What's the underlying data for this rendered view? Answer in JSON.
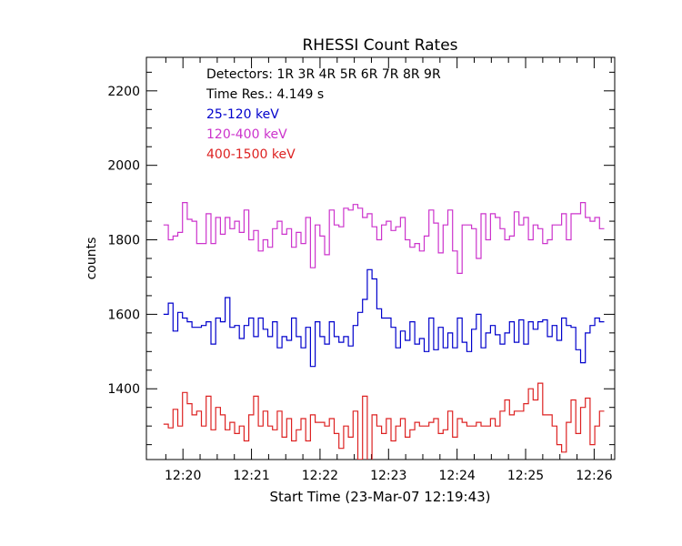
{
  "chart_data": {
    "type": "line",
    "title": "RHESSI Count Rates",
    "xlabel": "Start Time (23-Mar-07 12:19:43)",
    "ylabel": "counts",
    "xlim": [
      -15,
      395
    ],
    "ylim": [
      1210,
      2290
    ],
    "x_ticks": [
      {
        "value": 17,
        "label": "12:20"
      },
      {
        "value": 77,
        "label": "12:21"
      },
      {
        "value": 137,
        "label": "12:22"
      },
      {
        "value": 197,
        "label": "12:23"
      },
      {
        "value": 257,
        "label": "12:24"
      },
      {
        "value": 317,
        "label": "12:25"
      },
      {
        "value": 377,
        "label": "12:26"
      }
    ],
    "y_ticks": [
      {
        "value": 1400,
        "label": "1400"
      },
      {
        "value": 1600,
        "label": "1600"
      },
      {
        "value": 1800,
        "label": "1800"
      },
      {
        "value": 2000,
        "label": "2000"
      },
      {
        "value": 2200,
        "label": "2200"
      }
    ],
    "annotations": [
      {
        "text": "Detectors:  1R 3R 4R 5R 6R 7R 8R 9R",
        "color": "#000000"
      },
      {
        "text": "Time Res.: 4.149 s",
        "color": "#000000"
      },
      {
        "text": "25-120 keV",
        "color": "#0000cc"
      },
      {
        "text": "120-400 keV",
        "color": "#cc33cc"
      },
      {
        "text": "400-1500 keV",
        "color": "#dd2222"
      }
    ],
    "x_start": 0,
    "x_step": 4.149,
    "series": [
      {
        "name": "25-120 keV",
        "color": "#0000cc",
        "values": [
          1600,
          1630,
          1555,
          1605,
          1590,
          1580,
          1565,
          1565,
          1570,
          1580,
          1520,
          1590,
          1580,
          1645,
          1565,
          1570,
          1535,
          1570,
          1590,
          1540,
          1590,
          1560,
          1540,
          1580,
          1510,
          1540,
          1530,
          1590,
          1540,
          1510,
          1565,
          1460,
          1580,
          1540,
          1520,
          1580,
          1540,
          1525,
          1540,
          1515,
          1570,
          1605,
          1640,
          1720,
          1695,
          1615,
          1590,
          1590,
          1565,
          1510,
          1555,
          1530,
          1580,
          1520,
          1535,
          1500,
          1590,
          1505,
          1565,
          1510,
          1550,
          1510,
          1590,
          1525,
          1500,
          1560,
          1600,
          1510,
          1550,
          1570,
          1545,
          1520,
          1550,
          1580,
          1525,
          1585,
          1520,
          1580,
          1560,
          1580,
          1585,
          1540,
          1570,
          1530,
          1590,
          1570,
          1565,
          1505,
          1470,
          1550,
          1570,
          1590,
          1580
        ]
      },
      {
        "name": "120-400 keV",
        "color": "#cc33cc",
        "values": [
          1840,
          1800,
          1810,
          1820,
          1900,
          1855,
          1850,
          1790,
          1790,
          1870,
          1790,
          1860,
          1815,
          1860,
          1830,
          1850,
          1820,
          1880,
          1800,
          1825,
          1770,
          1800,
          1780,
          1830,
          1850,
          1815,
          1830,
          1780,
          1820,
          1790,
          1860,
          1725,
          1840,
          1810,
          1760,
          1880,
          1840,
          1835,
          1885,
          1880,
          1895,
          1885,
          1860,
          1870,
          1835,
          1800,
          1840,
          1850,
          1825,
          1835,
          1860,
          1800,
          1780,
          1790,
          1770,
          1810,
          1880,
          1845,
          1765,
          1840,
          1880,
          1770,
          1710,
          1840,
          1840,
          1830,
          1750,
          1870,
          1800,
          1870,
          1860,
          1830,
          1800,
          1810,
          1875,
          1840,
          1860,
          1800,
          1840,
          1830,
          1790,
          1800,
          1840,
          1840,
          1870,
          1800,
          1870,
          1870,
          1900,
          1860,
          1850,
          1860,
          1830
        ]
      },
      {
        "name": "400-1500 keV",
        "color": "#dd2222",
        "values": [
          1305,
          1295,
          1345,
          1300,
          1390,
          1360,
          1330,
          1340,
          1300,
          1380,
          1290,
          1350,
          1330,
          1290,
          1310,
          1280,
          1300,
          1260,
          1330,
          1380,
          1300,
          1340,
          1300,
          1290,
          1340,
          1270,
          1320,
          1260,
          1290,
          1320,
          1260,
          1330,
          1310,
          1310,
          1300,
          1320,
          1280,
          1240,
          1300,
          1270,
          1340,
          1210,
          1380,
          1200,
          1330,
          1300,
          1280,
          1320,
          1260,
          1300,
          1320,
          1270,
          1290,
          1310,
          1300,
          1300,
          1310,
          1320,
          1280,
          1290,
          1340,
          1270,
          1320,
          1310,
          1300,
          1300,
          1310,
          1300,
          1300,
          1320,
          1300,
          1340,
          1370,
          1330,
          1340,
          1340,
          1360,
          1400,
          1370,
          1415,
          1330,
          1330,
          1300,
          1250,
          1230,
          1310,
          1370,
          1280,
          1350,
          1375,
          1250,
          1300,
          1340
        ]
      }
    ]
  }
}
